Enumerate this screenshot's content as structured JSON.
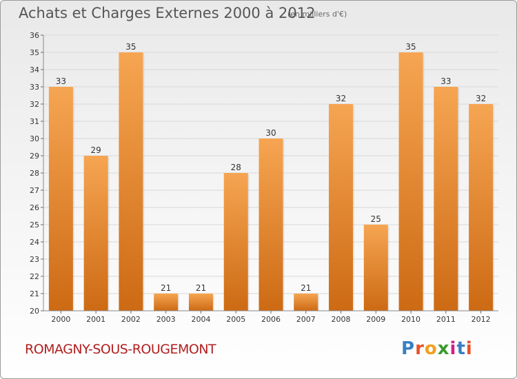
{
  "header": {
    "title": "Achats et Charges Externes 2000 à 2012",
    "subtitle": "(en milliers d'€)"
  },
  "footer": {
    "commune": "ROMAGNY-SOUS-ROUGEMONT"
  },
  "logo": {
    "letters": [
      "P",
      "r",
      "o",
      "x",
      "i",
      "t",
      "i"
    ],
    "colors": [
      "#3a7fc4",
      "#e8502a",
      "#f0a020",
      "#3a9a30",
      "#d02080",
      "#3a7fc4",
      "#e8502a"
    ]
  },
  "colors": {
    "bar_top": "#f6a552",
    "bar_bottom": "#cd6a14",
    "grid": "#d8d8d8",
    "axis_text": "#333333"
  },
  "chart_data": {
    "type": "bar",
    "title": "Achats et Charges Externes 2000 à 2012",
    "subtitle": "(en milliers d'€)",
    "categories": [
      "2000",
      "2001",
      "2002",
      "2003",
      "2004",
      "2005",
      "2006",
      "2007",
      "2008",
      "2009",
      "2010",
      "2011",
      "2012"
    ],
    "values": [
      33,
      29,
      35,
      21,
      21,
      28,
      30,
      21,
      32,
      25,
      35,
      33,
      32
    ],
    "ylim": [
      20,
      36
    ],
    "yticks": [
      20,
      21,
      22,
      23,
      24,
      25,
      26,
      27,
      28,
      29,
      30,
      31,
      32,
      33,
      34,
      35,
      36
    ],
    "grid": true,
    "legend": "none"
  }
}
